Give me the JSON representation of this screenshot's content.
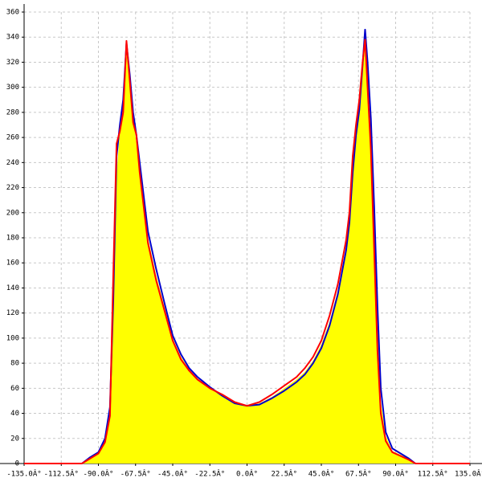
{
  "chart_data": {
    "type": "area",
    "x": [
      -135,
      -100,
      -95,
      -90,
      -86,
      -83,
      -81,
      -79,
      -77,
      -75,
      -73,
      -71,
      -69,
      -67,
      -65,
      -60,
      -55,
      -50,
      -45,
      -40,
      -35,
      -30,
      -22.5,
      -15,
      -7.5,
      0,
      7.5,
      15,
      22.5,
      30,
      35,
      40,
      45,
      50,
      55,
      60,
      62,
      64,
      66,
      68,
      70,
      71.5,
      73,
      75,
      77,
      79,
      81,
      84,
      88,
      93,
      98,
      102,
      135
    ],
    "series": [
      {
        "color": "#ffff00",
        "fill": true,
        "values": [
          null,
          0,
          4,
          8,
          18,
          40,
          120,
          230,
          265,
          285,
          330,
          310,
          275,
          255,
          235,
          180,
          150,
          125,
          100,
          85,
          75,
          68,
          60,
          54,
          48,
          46,
          48,
          53,
          60,
          67,
          73,
          82,
          95,
          113,
          138,
          172,
          195,
          235,
          265,
          285,
          315,
          335,
          315,
          265,
          190,
          110,
          50,
          22,
          10,
          7,
          4,
          0,
          null
        ]
      },
      {
        "color": "#0000cc",
        "fill": false,
        "values": [
          null,
          0,
          5,
          9,
          20,
          45,
          130,
          245,
          270,
          290,
          335,
          310,
          280,
          262,
          240,
          185,
          155,
          128,
          102,
          87,
          76,
          69,
          61,
          54,
          48,
          46,
          47,
          52,
          58,
          65,
          71,
          80,
          92,
          110,
          135,
          170,
          192,
          232,
          262,
          282,
          318,
          346,
          320,
          275,
          205,
          125,
          60,
          25,
          12,
          8,
          4,
          0,
          null
        ]
      },
      {
        "color": "#ff0000",
        "fill": false,
        "values": [
          0,
          0,
          4,
          8,
          17,
          38,
          150,
          255,
          265,
          280,
          337,
          305,
          272,
          262,
          232,
          176,
          146,
          122,
          98,
          83,
          74,
          67,
          60,
          55,
          49,
          46,
          49,
          55,
          62,
          69,
          76,
          85,
          98,
          118,
          143,
          178,
          200,
          245,
          270,
          290,
          320,
          338,
          300,
          250,
          170,
          90,
          40,
          18,
          9,
          6,
          3,
          0,
          0
        ]
      }
    ],
    "xlim": [
      -135,
      135
    ],
    "xticks": [
      {
        "value": -135,
        "label": "-135.0Â°"
      },
      {
        "value": -112.5,
        "label": "-112.5Â°"
      },
      {
        "value": -90,
        "label": "-90.0Â°"
      },
      {
        "value": -67.5,
        "label": "-67.5Â°"
      },
      {
        "value": -45,
        "label": "-45.0Â°"
      },
      {
        "value": -22.5,
        "label": "-22.5Â°"
      },
      {
        "value": 0,
        "label": "0.0Â°"
      },
      {
        "value": 22.5,
        "label": "22.5Â°"
      },
      {
        "value": 45,
        "label": "45.0Â°"
      },
      {
        "value": 67.5,
        "label": "67.5Â°"
      },
      {
        "value": 90,
        "label": "90.0Â°"
      },
      {
        "value": 112.5,
        "label": "112.5Â°"
      },
      {
        "value": 135,
        "label": "135.0Â°"
      }
    ],
    "ylim": [
      0,
      360
    ],
    "yticks": [
      0,
      20,
      40,
      60,
      80,
      100,
      120,
      140,
      160,
      180,
      200,
      220,
      240,
      260,
      280,
      300,
      320,
      340,
      360
    ],
    "grid": true
  }
}
